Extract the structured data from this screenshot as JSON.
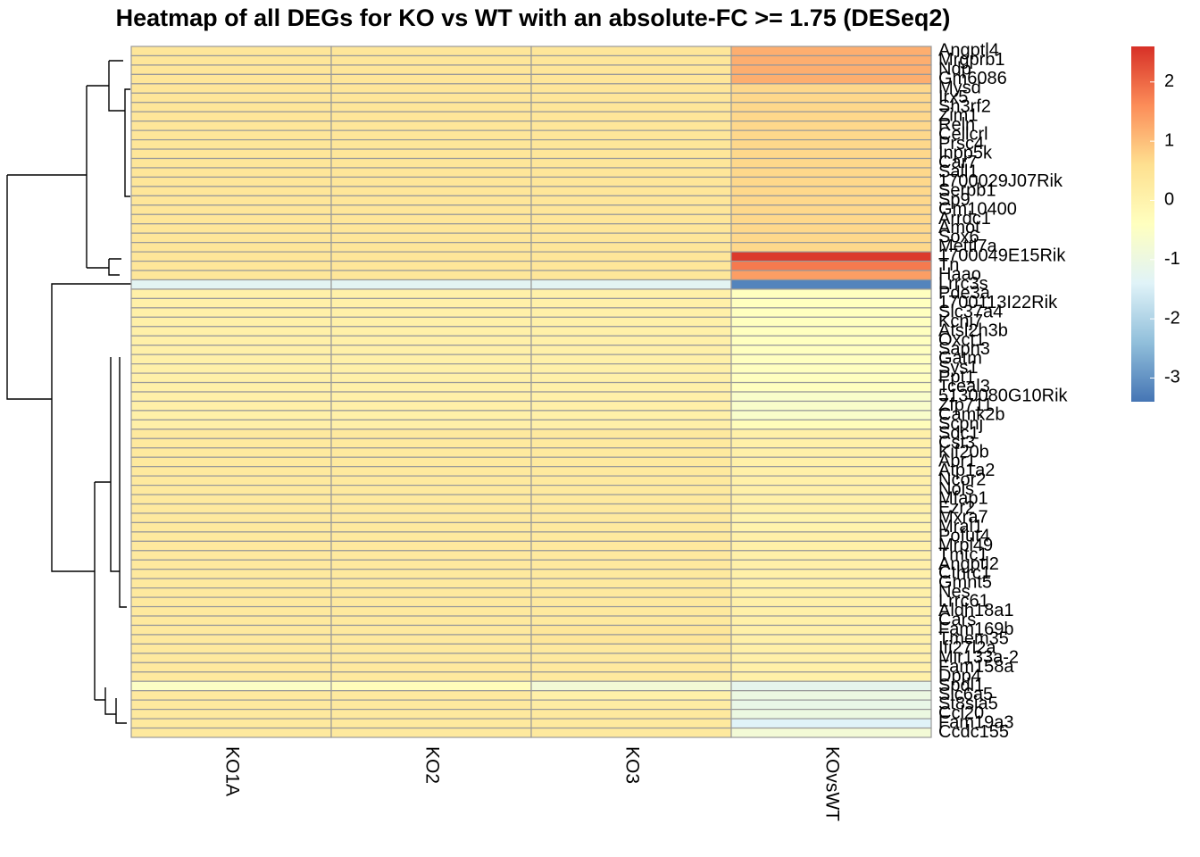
{
  "chart_data": {
    "type": "heatmap",
    "title": "Heatmap of all DEGs for KO vs WT with an absolute-FC >= 1.75 (DESeq2)",
    "columns": [
      "KO1A",
      "KO2",
      "KO3",
      "KOvsWT"
    ],
    "rows": [
      "Angptl4",
      "Mrgprb1",
      "Ndp",
      "Gm6086",
      "Mysd",
      "Irx5",
      "Sh3rf2",
      "Zim1",
      "Reln",
      "Cellcrl",
      "Prsc4",
      "Inpp5k",
      "Car7",
      "Sall1",
      "1700029J07Rik",
      "Serpb1",
      "Sp9",
      "Gm10400",
      "Arrdc1",
      "Amot",
      "Sox6",
      "Mettl7a",
      "1700049E15Rik",
      "Tn",
      "Haao",
      "Lrrc3s",
      "Pde3a",
      "1700113I22Rik",
      "Slc37a4",
      "Kcnj7",
      "Atsl2h3b",
      "Oxct1",
      "Sapn3",
      "Gatm",
      "Sys1",
      "Ppt1",
      "Tceal3",
      "5130080G10Rik",
      "Zfp711",
      "Camk2b",
      "Scpnj",
      "Sdc1",
      "Cst3",
      "Kif20b",
      "Abr1",
      "Atp1a2",
      "Ncor2",
      "Nols",
      "Mfap1",
      "Ezr2",
      "Mxra7",
      "Mral1",
      "Pofut4",
      "Mrpl49",
      "Tmtc1",
      "Angptl2",
      "Cthrc1",
      "Gmnt5",
      "Nes",
      "Lrrc61",
      "Aldh18a1",
      "Cars",
      "Fam169b",
      "Tmem35",
      "Ifi27l2a",
      "Mir133a-2",
      "Fam158a",
      "Dpp4",
      "Spdl1",
      "Slc6a5",
      "St8sia5",
      "Ccl20",
      "Fam19a3",
      "Ccdc155"
    ],
    "values": [
      [
        0.4,
        0.4,
        0.4,
        1.2
      ],
      [
        0.4,
        0.4,
        0.4,
        1.2
      ],
      [
        0.4,
        0.4,
        0.4,
        1.2
      ],
      [
        0.4,
        0.4,
        0.4,
        1.2
      ],
      [
        0.4,
        0.4,
        0.4,
        0.7
      ],
      [
        0.4,
        0.4,
        0.4,
        0.7
      ],
      [
        0.4,
        0.4,
        0.4,
        0.7
      ],
      [
        0.4,
        0.4,
        0.4,
        0.7
      ],
      [
        0.4,
        0.4,
        0.4,
        0.7
      ],
      [
        0.4,
        0.4,
        0.4,
        0.7
      ],
      [
        0.4,
        0.4,
        0.4,
        0.7
      ],
      [
        0.4,
        0.4,
        0.4,
        0.7
      ],
      [
        0.4,
        0.4,
        0.4,
        0.7
      ],
      [
        0.4,
        0.4,
        0.4,
        0.7
      ],
      [
        0.4,
        0.4,
        0.4,
        0.7
      ],
      [
        0.4,
        0.4,
        0.4,
        0.7
      ],
      [
        0.4,
        0.4,
        0.4,
        0.7
      ],
      [
        0.4,
        0.4,
        0.4,
        0.7
      ],
      [
        0.4,
        0.4,
        0.4,
        0.7
      ],
      [
        0.4,
        0.4,
        0.4,
        0.7
      ],
      [
        0.4,
        0.4,
        0.4,
        0.7
      ],
      [
        0.4,
        0.4,
        0.4,
        0.7
      ],
      [
        0.4,
        0.4,
        0.4,
        2.5
      ],
      [
        0.4,
        0.4,
        0.4,
        1.8
      ],
      [
        0.4,
        0.4,
        0.4,
        1.4
      ],
      [
        -1.3,
        -1.3,
        -1.3,
        -3.2
      ],
      [
        0.1,
        0.1,
        0.1,
        -0.4
      ],
      [
        0.1,
        0.1,
        0.1,
        -0.4
      ],
      [
        0.1,
        0.1,
        0.1,
        -0.4
      ],
      [
        0.1,
        0.1,
        0.1,
        -0.4
      ],
      [
        0.1,
        0.1,
        0.1,
        -0.4
      ],
      [
        0.1,
        0.1,
        0.1,
        -0.4
      ],
      [
        0.1,
        0.1,
        0.1,
        -0.4
      ],
      [
        0.1,
        0.1,
        0.1,
        -0.4
      ],
      [
        0.1,
        0.1,
        0.1,
        -0.4
      ],
      [
        0.1,
        0.1,
        0.1,
        -0.4
      ],
      [
        0.1,
        0.1,
        0.1,
        -0.4
      ],
      [
        0.1,
        0.1,
        0.1,
        -0.6
      ],
      [
        0.1,
        0.1,
        0.1,
        -0.6
      ],
      [
        0.1,
        0.1,
        0.1,
        -0.6
      ],
      [
        0.1,
        0.1,
        0.1,
        -0.3
      ],
      [
        0.3,
        0.3,
        0.3,
        0.1
      ],
      [
        0.3,
        0.3,
        0.3,
        0.1
      ],
      [
        0.3,
        0.3,
        0.3,
        0.1
      ],
      [
        0.3,
        0.3,
        0.3,
        0.1
      ],
      [
        0.3,
        0.3,
        0.3,
        0.1
      ],
      [
        0.3,
        0.3,
        0.3,
        0.1
      ],
      [
        0.3,
        0.3,
        0.3,
        0.1
      ],
      [
        0.3,
        0.3,
        0.3,
        0.1
      ],
      [
        0.3,
        0.3,
        0.3,
        0.1
      ],
      [
        0.3,
        0.3,
        0.3,
        0.0
      ],
      [
        0.3,
        0.3,
        0.3,
        0.0
      ],
      [
        0.3,
        0.3,
        0.3,
        0.1
      ],
      [
        0.3,
        0.3,
        0.3,
        0.1
      ],
      [
        0.3,
        0.3,
        0.3,
        0.1
      ],
      [
        0.3,
        0.3,
        0.3,
        0.1
      ],
      [
        0.3,
        0.3,
        0.3,
        0.1
      ],
      [
        0.3,
        0.3,
        0.3,
        0.1
      ],
      [
        0.3,
        0.3,
        0.3,
        0.1
      ],
      [
        0.3,
        0.3,
        0.3,
        0.1
      ],
      [
        0.3,
        0.3,
        0.3,
        0.1
      ],
      [
        0.3,
        0.3,
        0.3,
        0.1
      ],
      [
        0.3,
        0.3,
        0.4,
        0.1
      ],
      [
        0.3,
        0.3,
        0.4,
        0.1
      ],
      [
        0.3,
        0.3,
        0.3,
        0.1
      ],
      [
        0.3,
        0.3,
        0.3,
        0.1
      ],
      [
        0.3,
        0.3,
        0.3,
        0.1
      ],
      [
        0.3,
        0.3,
        0.3,
        0.1
      ],
      [
        -0.5,
        -0.3,
        -0.8,
        -1.2
      ],
      [
        0.3,
        0.3,
        0.1,
        -1.0
      ],
      [
        0.3,
        0.3,
        0.2,
        -1.1
      ],
      [
        0.3,
        0.3,
        0.3,
        -1.0
      ],
      [
        0.3,
        0.3,
        0.3,
        -1.4
      ],
      [
        0.3,
        0.3,
        0.3,
        -0.8
      ]
    ],
    "zlim": [
      -3.4,
      2.6
    ],
    "zticks": [
      2,
      1,
      0,
      -1,
      -2,
      -3
    ],
    "palette": [
      "#4575B4",
      "#91BFDB",
      "#E0F3F8",
      "#FFFFBF",
      "#FEE090",
      "#FC8D59",
      "#D73027"
    ],
    "cell_border": "#999999"
  }
}
